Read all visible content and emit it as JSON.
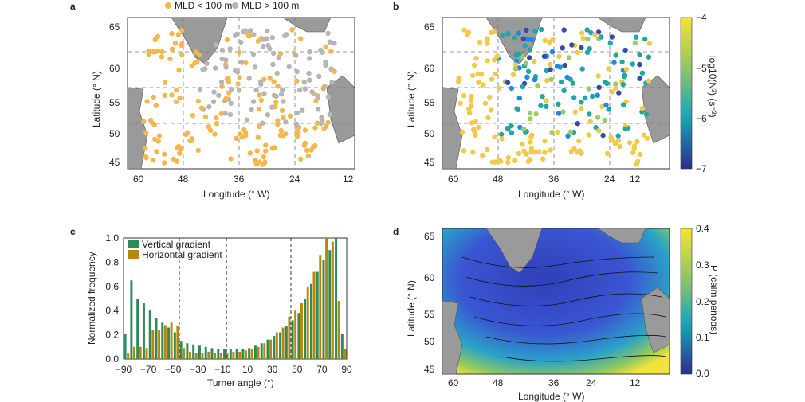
{
  "panels": {
    "a": {
      "label": "a",
      "legend": [
        {
          "name": "MLD < 100 m",
          "color": "#f2b84f"
        },
        {
          "name": "MLD > 100 m",
          "color": "#b5b5b5"
        }
      ],
      "xlabel": "Longitude (° W)",
      "ylabel": "Latitude (° N)",
      "xticks": [
        "60",
        "48",
        "36",
        "24",
        "12"
      ],
      "yticks": [
        "65",
        "60",
        "55",
        "50",
        "45"
      ]
    },
    "b": {
      "label": "b",
      "xlabel": "Longitude (° W)",
      "ylabel": "Latitude (° N)",
      "xticks": [
        "60",
        "48",
        "36",
        "24",
        "12"
      ],
      "yticks": [
        "65",
        "60",
        "55",
        "50",
        "45"
      ],
      "colorbar_label": "log10(N²) (s⁻²)",
      "colorbar_ticks": [
        "−4",
        "−5",
        "−6",
        "−7"
      ]
    },
    "c": {
      "label": "c",
      "xlabel": "Turner angle (°)",
      "ylabel": "Normalized frequency",
      "xticks": [
        "−90",
        "−70",
        "−50",
        "−30",
        "−10",
        "10",
        "30",
        "50",
        "70",
        "90"
      ],
      "yticks": [
        "1.0",
        "0.8",
        "0.6",
        "0.4",
        "0.2",
        "0.0"
      ]
    },
    "d": {
      "label": "d",
      "xlabel": "Longitude (° W)",
      "ylabel": "Latitude (° N)",
      "xticks": [
        "60",
        "48",
        "36",
        "24",
        "12"
      ],
      "yticks": [
        "65",
        "60",
        "55",
        "50",
        "45"
      ],
      "colorbar_label": "P (calm periods)",
      "colorbar_ticks": [
        "0.4",
        "0.3",
        "0.2",
        "0.1",
        "0.0"
      ]
    }
  },
  "chart_data": {
    "type": "bar",
    "x": [
      -87.5,
      -82.5,
      -77.5,
      -72.5,
      -67.5,
      -62.5,
      -57.5,
      -52.5,
      -47.5,
      -42.5,
      -37.5,
      -32.5,
      -27.5,
      -22.5,
      -17.5,
      -12.5,
      -7.5,
      -2.5,
      2.5,
      7.5,
      12.5,
      17.5,
      22.5,
      27.5,
      32.5,
      37.5,
      42.5,
      47.5,
      52.5,
      57.5,
      62.5,
      67.5,
      72.5,
      77.5,
      82.5,
      87.5
    ],
    "xlim": [
      -90,
      90
    ],
    "ylim": [
      0,
      1.0
    ],
    "xlabel": "Turner angle (°)",
    "ylabel": "Normalized frequency",
    "series": [
      {
        "name": "Vertical gradient",
        "color": "#2e8b57",
        "values": [
          0.21,
          0.65,
          0.5,
          0.46,
          0.4,
          0.34,
          0.3,
          0.26,
          0.22,
          0.15,
          0.13,
          0.12,
          0.11,
          0.1,
          0.09,
          0.08,
          0.08,
          0.08,
          0.08,
          0.08,
          0.09,
          0.11,
          0.13,
          0.16,
          0.19,
          0.22,
          0.27,
          0.32,
          0.38,
          0.5,
          0.62,
          0.72,
          0.82,
          0.9,
          1.0,
          0.21
        ]
      },
      {
        "name": "Horizontal gradient",
        "color": "#b8860b",
        "values": [
          0.05,
          0.1,
          0.1,
          0.09,
          0.24,
          0.24,
          0.28,
          0.3,
          0.27,
          0.09,
          0.06,
          0.05,
          0.05,
          0.06,
          0.05,
          0.05,
          0.05,
          0.06,
          0.06,
          0.07,
          0.08,
          0.1,
          0.13,
          0.16,
          0.22,
          0.26,
          0.35,
          0.4,
          0.46,
          0.6,
          0.72,
          0.86,
          1.0,
          0.97,
          0.48,
          0.08
        ]
      }
    ],
    "annotations": {
      "dashed_lines_x": [
        -45,
        -7,
        45
      ]
    }
  }
}
